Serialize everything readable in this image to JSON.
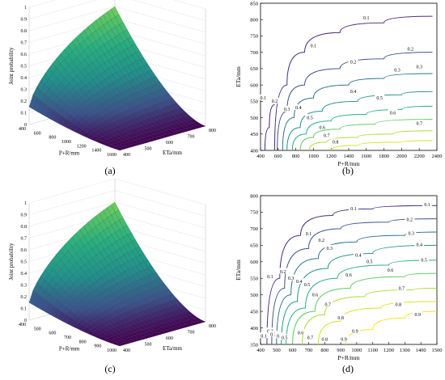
{
  "chart_data": [
    {
      "type": "surface",
      "panel_label": "(a)",
      "zlabel": "Joint probability",
      "xlabel": "P+R/mm",
      "ylabel": "ETa/mm",
      "x_ticks": [
        "400",
        "600",
        "800",
        "1000",
        "1200",
        "1400",
        "1600"
      ],
      "y_ticks": [
        "400",
        "500",
        "600",
        "700",
        "800"
      ],
      "z_ticks": [
        "0",
        "0.1",
        "0.2",
        "0.3",
        "0.4",
        "0.5",
        "0.6",
        "0.7",
        "0.8",
        "0.9",
        "1"
      ],
      "z_range": [
        0,
        1
      ],
      "colormap": "viridis",
      "max_value": 1.0
    },
    {
      "type": "contour",
      "panel_label": "(b)",
      "xlabel": "P+R/mm",
      "ylabel": "ETa/mm",
      "x_ticks": [
        400,
        600,
        800,
        1000,
        1200,
        1400,
        1600,
        1800,
        2000,
        2200,
        2400
      ],
      "y_ticks": [
        400,
        450,
        500,
        550,
        600,
        650,
        700,
        750,
        800,
        850
      ],
      "xlim": [
        400,
        2400
      ],
      "ylim": [
        400,
        850
      ],
      "levels": [
        {
          "level": "0.1",
          "color": "#472d7b",
          "points": [
            [
              560,
              400
            ],
            [
              700,
              600
            ],
            [
              900,
              700
            ],
            [
              1300,
              760
            ],
            [
              1800,
              790
            ],
            [
              2350,
              810
            ]
          ]
        },
        {
          "level": "0.1",
          "color": "#482374",
          "points": [
            [
              450,
              400
            ],
            [
              500,
              470
            ],
            [
              560,
              540
            ]
          ]
        },
        {
          "level": "0.2",
          "color": "#3b528b",
          "points": [
            [
              590,
              400
            ],
            [
              700,
              520
            ],
            [
              900,
              600
            ],
            [
              1300,
              650
            ],
            [
              1800,
              680
            ],
            [
              2350,
              700
            ]
          ]
        },
        {
          "level": "0.3",
          "color": "#2c728e",
          "points": [
            [
              650,
              400
            ],
            [
              780,
              500
            ],
            [
              1000,
              560
            ],
            [
              1400,
              600
            ],
            [
              1800,
              620
            ],
            [
              2350,
              635
            ]
          ]
        },
        {
          "level": "0.4",
          "color": "#21918c",
          "points": [
            [
              700,
              400
            ],
            [
              850,
              470
            ],
            [
              1100,
              520
            ],
            [
              1500,
              550
            ],
            [
              2000,
              570
            ],
            [
              2350,
              580
            ]
          ]
        },
        {
          "level": "0.5",
          "color": "#28ae80",
          "points": [
            [
              760,
              400
            ],
            [
              920,
              450
            ],
            [
              1200,
              490
            ],
            [
              1600,
              510
            ],
            [
              2000,
              525
            ],
            [
              2350,
              535
            ]
          ]
        },
        {
          "level": "0.6",
          "color": "#5ec962",
          "points": [
            [
              850,
              400
            ],
            [
              1000,
              440
            ],
            [
              1300,
              465
            ],
            [
              1700,
              480
            ],
            [
              2350,
              495
            ]
          ]
        },
        {
          "level": "0.7",
          "color": "#addc30",
          "points": [
            [
              950,
              400
            ],
            [
              1150,
              425
            ],
            [
              1500,
              440
            ],
            [
              1900,
              450
            ],
            [
              2350,
              460
            ]
          ]
        },
        {
          "level": "0.8",
          "color": "#d8e219",
          "points": [
            [
              1200,
              400
            ],
            [
              1500,
              415
            ],
            [
              2000,
              425
            ],
            [
              2350,
              430
            ]
          ]
        }
      ],
      "labels": [
        {
          "text": "0.1",
          "x": 1000,
          "y": 720
        },
        {
          "text": "0.2",
          "x": 1450,
          "y": 670
        },
        {
          "text": "0.3",
          "x": 1950,
          "y": 645
        },
        {
          "text": "0.1",
          "x": 1600,
          "y": 805
        },
        {
          "text": "0.2",
          "x": 2100,
          "y": 710
        },
        {
          "text": "0.3",
          "x": 2200,
          "y": 655
        },
        {
          "text": "0.1",
          "x": 430,
          "y": 560
        },
        {
          "text": "0.2",
          "x": 560,
          "y": 550
        },
        {
          "text": "0.3",
          "x": 700,
          "y": 525
        },
        {
          "text": "0.4",
          "x": 830,
          "y": 530
        },
        {
          "text": "0.5",
          "x": 960,
          "y": 500
        },
        {
          "text": "0.4",
          "x": 1450,
          "y": 580
        },
        {
          "text": "0.5",
          "x": 1750,
          "y": 560
        },
        {
          "text": "0.6",
          "x": 1900,
          "y": 515
        },
        {
          "text": "0.6",
          "x": 1100,
          "y": 470
        },
        {
          "text": "0.7",
          "x": 2200,
          "y": 482
        },
        {
          "text": "0.7",
          "x": 1150,
          "y": 445
        },
        {
          "text": "0.8",
          "x": 1250,
          "y": 425
        }
      ]
    },
    {
      "type": "surface",
      "panel_label": "(c)",
      "zlabel": "Joint probability",
      "xlabel": "P+R/mm",
      "ylabel": "ETa/mm",
      "x_ticks": [
        "400",
        "500",
        "600",
        "700",
        "800",
        "900",
        "1000"
      ],
      "y_ticks": [
        "400",
        "500",
        "600",
        "700",
        "800"
      ],
      "z_ticks": [
        "0",
        "0.1",
        "0.2",
        "0.3",
        "0.4",
        "0.5",
        "0.6",
        "0.7",
        "0.8",
        "0.9",
        "1"
      ],
      "z_range": [
        0,
        1
      ],
      "colormap": "viridis",
      "max_value": 1.0
    },
    {
      "type": "contour",
      "panel_label": "(d)",
      "xlabel": "P+R/mm",
      "ylabel": "ETa/mm",
      "x_ticks": [
        400,
        500,
        600,
        700,
        800,
        900,
        1000,
        1100,
        1200,
        1300,
        1400,
        1500
      ],
      "y_ticks": [
        350,
        400,
        450,
        500,
        550,
        600,
        650,
        700,
        750,
        800
      ],
      "xlim": [
        400,
        1500
      ],
      "ylim": [
        350,
        800
      ],
      "levels": [
        {
          "level": "0.1",
          "color": "#472d7b",
          "points": [
            [
              440,
              350
            ],
            [
              520,
              550
            ],
            [
              650,
              680
            ],
            [
              850,
              740
            ],
            [
              1100,
              760
            ],
            [
              1500,
              770
            ]
          ]
        },
        {
          "level": "0.2",
          "color": "#3b528b",
          "points": [
            [
              470,
              350
            ],
            [
              550,
              520
            ],
            [
              700,
              640
            ],
            [
              900,
              700
            ],
            [
              1200,
              720
            ],
            [
              1500,
              730
            ]
          ]
        },
        {
          "level": "0.3",
          "color": "#2c728e",
          "points": [
            [
              500,
              350
            ],
            [
              590,
              500
            ],
            [
              760,
              610
            ],
            [
              1000,
              660
            ],
            [
              1300,
              680
            ],
            [
              1500,
              690
            ]
          ]
        },
        {
          "level": "0.4",
          "color": "#21918c",
          "points": [
            [
              530,
              350
            ],
            [
              630,
              480
            ],
            [
              820,
              580
            ],
            [
              1100,
              625
            ],
            [
              1500,
              650
            ]
          ]
        },
        {
          "level": "0.5",
          "color": "#28ae80",
          "points": [
            [
              560,
              350
            ],
            [
              680,
              460
            ],
            [
              880,
              550
            ],
            [
              1200,
              590
            ],
            [
              1500,
              605
            ]
          ]
        },
        {
          "level": "0.6",
          "color": "#5ec962",
          "points": [
            [
              600,
              350
            ],
            [
              740,
              450
            ],
            [
              960,
              520
            ],
            [
              1300,
              555
            ],
            [
              1500,
              565
            ]
          ]
        },
        {
          "level": "0.7",
          "color": "#addc30",
          "points": [
            [
              660,
              350
            ],
            [
              800,
              440
            ],
            [
              1050,
              495
            ],
            [
              1350,
              515
            ],
            [
              1500,
              520
            ]
          ]
        },
        {
          "level": "0.8",
          "color": "#d8e219",
          "points": [
            [
              760,
              350
            ],
            [
              900,
              420
            ],
            [
              1150,
              460
            ],
            [
              1500,
              480
            ]
          ]
        },
        {
          "level": "0.9",
          "color": "#f7e422",
          "points": [
            [
              930,
              350
            ],
            [
              1100,
              395
            ],
            [
              1300,
              430
            ],
            [
              1500,
              450
            ]
          ]
        }
      ],
      "labels": [
        {
          "text": "0.1",
          "x": 980,
          "y": 760
        },
        {
          "text": "0.1",
          "x": 1440,
          "y": 773
        },
        {
          "text": "0.2",
          "x": 1330,
          "y": 727
        },
        {
          "text": "0.3",
          "x": 1340,
          "y": 686
        },
        {
          "text": "0.4",
          "x": 1390,
          "y": 652
        },
        {
          "text": "0.5",
          "x": 1420,
          "y": 605
        },
        {
          "text": "0.6",
          "x": 1210,
          "y": 575
        },
        {
          "text": "0.7",
          "x": 1280,
          "y": 520
        },
        {
          "text": "0.8",
          "x": 1260,
          "y": 470
        },
        {
          "text": "0.9",
          "x": 1380,
          "y": 440
        },
        {
          "text": "0.1",
          "x": 700,
          "y": 685
        },
        {
          "text": "0.2",
          "x": 780,
          "y": 665
        },
        {
          "text": "0.3",
          "x": 830,
          "y": 640
        },
        {
          "text": "0.4",
          "x": 1010,
          "y": 620
        },
        {
          "text": "0.5",
          "x": 1080,
          "y": 600
        },
        {
          "text": "0.6",
          "x": 950,
          "y": 560
        },
        {
          "text": "0.1",
          "x": 460,
          "y": 555
        },
        {
          "text": "0.2",
          "x": 540,
          "y": 570
        },
        {
          "text": "0.3",
          "x": 590,
          "y": 550
        },
        {
          "text": "0.4",
          "x": 640,
          "y": 540
        },
        {
          "text": "0.5",
          "x": 690,
          "y": 530
        },
        {
          "text": "0.6",
          "x": 740,
          "y": 500
        },
        {
          "text": "0.7",
          "x": 820,
          "y": 470
        },
        {
          "text": "0.8",
          "x": 900,
          "y": 430
        },
        {
          "text": "0.9",
          "x": 990,
          "y": 390
        },
        {
          "text": "0.1",
          "x": 420,
          "y": 375
        },
        {
          "text": "0.2",
          "x": 460,
          "y": 390
        },
        {
          "text": "0.3",
          "x": 480,
          "y": 380
        },
        {
          "text": "0.4",
          "x": 520,
          "y": 375
        },
        {
          "text": "0.5",
          "x": 550,
          "y": 370
        },
        {
          "text": "0.6",
          "x": 650,
          "y": 385
        },
        {
          "text": "0.7",
          "x": 710,
          "y": 370
        },
        {
          "text": "0.8",
          "x": 800,
          "y": 365
        },
        {
          "text": "0.9",
          "x": 920,
          "y": 365
        }
      ]
    }
  ]
}
